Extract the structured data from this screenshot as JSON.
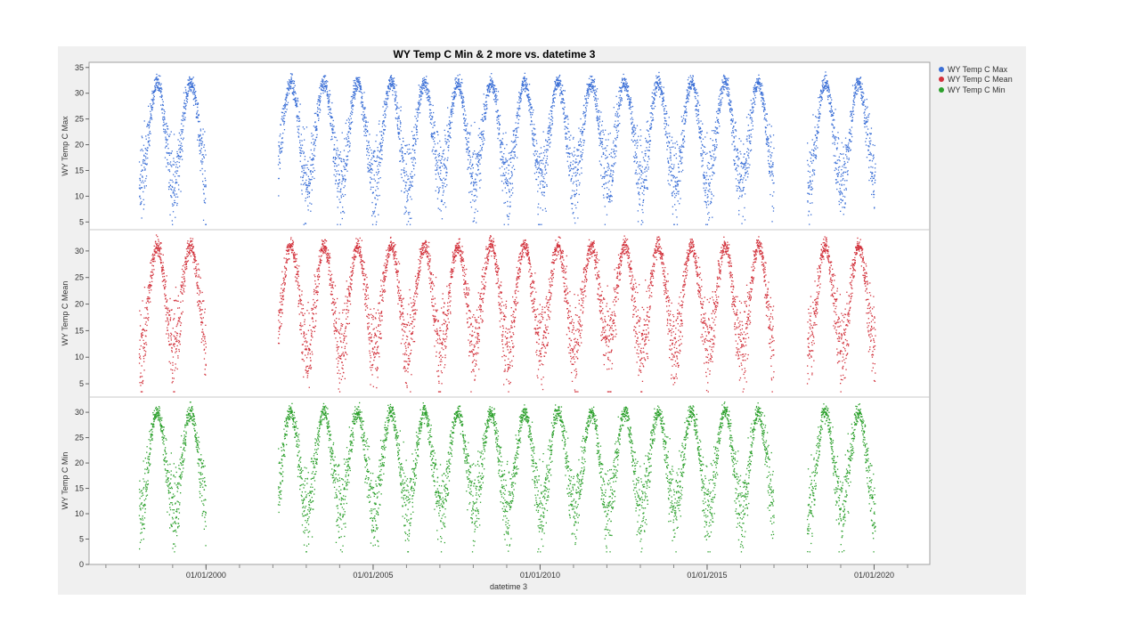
{
  "chart_data": {
    "type": "scatter",
    "title": "WY Temp C Min & 2 more vs. datetime 3",
    "xlabel": "datetime 3",
    "x_ticks": [
      "01/01/2000",
      "01/01/2005",
      "01/01/2010",
      "01/01/2015",
      "01/01/2020"
    ],
    "x_range": [
      "1996-07-01",
      "2021-09-01"
    ],
    "data_segments": [
      {
        "start": "1998-01-01",
        "end": "2000-01-01"
      },
      {
        "start": "2002-03-01",
        "end": "2017-01-01"
      },
      {
        "start": "2018-01-01",
        "end": "2020-01-15"
      }
    ],
    "seasonal_pattern": {
      "peak_month": 7,
      "trough_month": 1
    },
    "series": [
      {
        "name": "WY Temp C Max",
        "ylabel": "WY Temp C Max",
        "color": "#3b6fd6",
        "ylim": [
          3.5,
          36
        ],
        "y_ticks": [
          5,
          10,
          15,
          20,
          25,
          30,
          35
        ],
        "summer_peak": 32,
        "winter_trough": 13,
        "min_observed": 4.5,
        "max_observed": 35
      },
      {
        "name": "WY Temp C Mean",
        "ylabel": "WY Temp C Mean",
        "color": "#d2323c",
        "ylim": [
          2.5,
          34
        ],
        "y_ticks": [
          5,
          10,
          15,
          20,
          25,
          30
        ],
        "summer_peak": 31,
        "winter_trough": 12,
        "min_observed": 3.5,
        "max_observed": 33
      },
      {
        "name": "WY Temp C Min",
        "ylabel": "WY Temp C Min",
        "color": "#2ca02c",
        "ylim": [
          0,
          33
        ],
        "y_ticks": [
          0,
          5,
          10,
          15,
          20,
          25,
          30
        ],
        "summer_peak": 30,
        "winter_trough": 11,
        "min_observed": 2.5,
        "max_observed": 32
      }
    ],
    "legend_position": "top-right",
    "grid": false
  }
}
